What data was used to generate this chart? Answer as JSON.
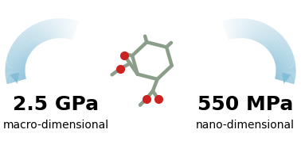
{
  "left_value": "2.5 GPa",
  "right_value": "550 MPa",
  "left_label": "macro-dimensional",
  "right_label": "nano-dimensional",
  "background_color": "#ffffff",
  "arrow_color": "#b8ddef",
  "arrow_color_tip": "#80bcd8",
  "value_fontsize": 18,
  "label_fontsize": 10,
  "value_fontweight": "bold",
  "label_fontweight": "normal",
  "fig_width": 3.78,
  "fig_height": 1.78,
  "mol_color": "#8a9e8a",
  "oxy_color": "#cc2222"
}
